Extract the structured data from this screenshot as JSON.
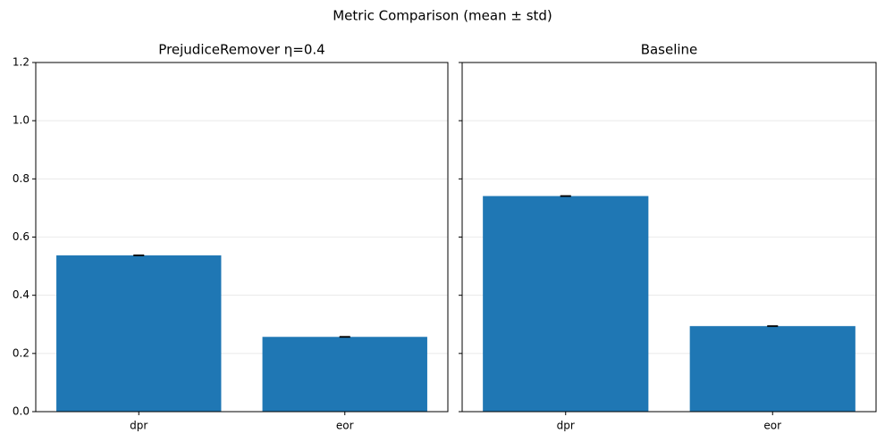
{
  "title": "Metric Comparison (mean ± std)",
  "chart_data": [
    {
      "type": "bar",
      "title": "PrejudiceRemover η=0.4",
      "categories": [
        "dpr",
        "eor"
      ],
      "values": [
        0.537,
        0.257
      ],
      "errors": [
        0.001,
        0.001
      ],
      "color": "#1f77b4",
      "ylim": [
        0,
        1.2
      ],
      "yticks": [
        0.0,
        0.2,
        0.4,
        0.6,
        0.8,
        1.0,
        1.2
      ],
      "ytick_labels": [
        "0.0",
        "0.2",
        "0.4",
        "0.6",
        "0.8",
        "1.0",
        "1.2"
      ],
      "grid": true
    },
    {
      "type": "bar",
      "title": "Baseline",
      "categories": [
        "dpr",
        "eor"
      ],
      "values": [
        0.741,
        0.294
      ],
      "errors": [
        0.001,
        0.001
      ],
      "color": "#1f77b4",
      "ylim": [
        0,
        1.2
      ],
      "yticks": [
        0.0,
        0.2,
        0.4,
        0.6,
        0.8,
        1.0,
        1.2
      ],
      "grid": true
    }
  ]
}
